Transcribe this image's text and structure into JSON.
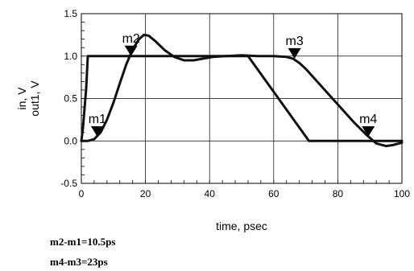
{
  "chart_data": {
    "type": "line",
    "xlabel": "time, psec",
    "ylabel_lines": [
      "in, V",
      "out1, V"
    ],
    "xlim": [
      0,
      100
    ],
    "ylim": [
      -0.5,
      1.5
    ],
    "x_ticks": [
      0,
      20,
      40,
      60,
      80,
      100
    ],
    "y_ticks": [
      -0.5,
      0.0,
      0.5,
      1.0,
      1.5
    ],
    "x_tick_labels": [
      "0",
      "20",
      "40",
      "60",
      "80",
      "100"
    ],
    "y_tick_labels": [
      "-0.5",
      "0.0",
      "0.5",
      "1.0",
      "1.5"
    ],
    "grid": true,
    "series": [
      {
        "points": [
          [
            0,
            0
          ],
          [
            0.5,
            0.15
          ],
          [
            1.5,
            0.62
          ],
          [
            2,
            1.0
          ],
          [
            52,
            1.0
          ],
          [
            71,
            0.0
          ],
          [
            100,
            0.0
          ]
        ]
      },
      {
        "points": [
          [
            0,
            0
          ],
          [
            2,
            0
          ],
          [
            4,
            0.02
          ],
          [
            6,
            0.1
          ],
          [
            8,
            0.25
          ],
          [
            10,
            0.45
          ],
          [
            12,
            0.68
          ],
          [
            14,
            0.9
          ],
          [
            16,
            1.08
          ],
          [
            18,
            1.2
          ],
          [
            19.5,
            1.25
          ],
          [
            21,
            1.24
          ],
          [
            23,
            1.18
          ],
          [
            26,
            1.07
          ],
          [
            29,
            0.99
          ],
          [
            32,
            0.95
          ],
          [
            35,
            0.95
          ],
          [
            38,
            0.97
          ],
          [
            41,
            0.99
          ],
          [
            45,
            1.0
          ],
          [
            50,
            1.01
          ],
          [
            55,
            1.0
          ],
          [
            60,
            1.0
          ],
          [
            64,
            0.99
          ],
          [
            66,
            0.97
          ],
          [
            68,
            0.92
          ],
          [
            70,
            0.85
          ],
          [
            75,
            0.64
          ],
          [
            80,
            0.43
          ],
          [
            85,
            0.22
          ],
          [
            89,
            0.07
          ],
          [
            92,
            -0.03
          ],
          [
            95,
            -0.06
          ],
          [
            97,
            -0.05
          ],
          [
            100,
            -0.02
          ]
        ]
      }
    ],
    "markers": [
      {
        "label": "m1",
        "x": 5,
        "y": 0.05
      },
      {
        "label": "m2",
        "x": 15.5,
        "y": 1.0
      },
      {
        "label": "m3",
        "x": 66.5,
        "y": 0.97
      },
      {
        "label": "m4",
        "x": 89.5,
        "y": 0.05
      }
    ]
  },
  "annotations": [
    "m2-m1=10.5ps",
    "m4-m3=23ps"
  ]
}
